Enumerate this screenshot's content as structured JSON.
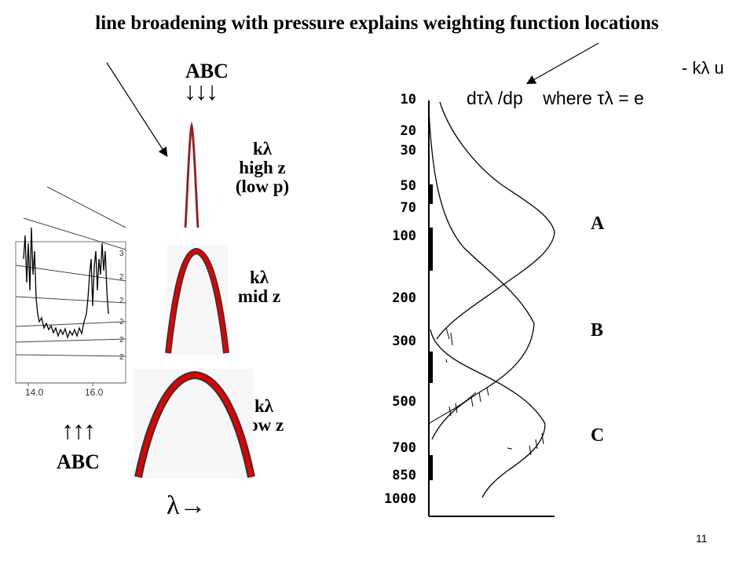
{
  "title": "line broadening with pressure explains weighting function locations",
  "formula": {
    "exponent": "- kλ u",
    "main": "dτλ /dp    where τλ = e"
  },
  "abc_top": {
    "label": "ABC",
    "arrows": "↓↓↓"
  },
  "abc_bottom": {
    "label": "ABC",
    "arrows": "↑↑↑"
  },
  "lines": [
    {
      "symbol": "kλ",
      "desc1": "high z",
      "desc2": "(low p)"
    },
    {
      "symbol": "kλ",
      "desc1": "mid z",
      "desc2": ""
    },
    {
      "symbol": "kλ",
      "desc1": "low z",
      "desc2": ""
    }
  ],
  "lambda_axis": "λ→",
  "spectrum_ticks": [
    "14.0",
    "16.0"
  ],
  "spectrum_right_ticks": [
    "3",
    "2",
    "2",
    "2",
    "2",
    "2"
  ],
  "weighting_labels": [
    "A",
    "B",
    "C"
  ],
  "pressure_ticks": [
    "10",
    "20",
    "30",
    "50",
    "70",
    "100",
    "200",
    "300",
    "500",
    "700",
    "850",
    "1000"
  ],
  "page_number": "11",
  "colors": {
    "line_core": "#cc0000",
    "edge": "#555555"
  }
}
